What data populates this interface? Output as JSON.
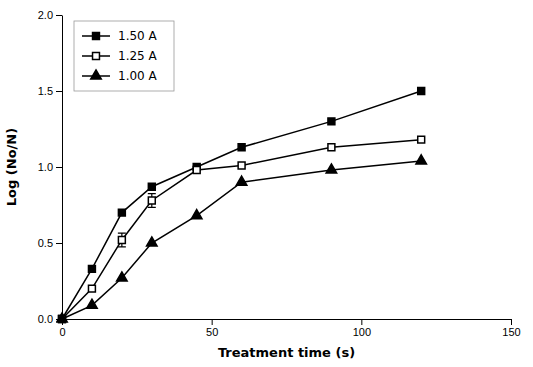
{
  "chart_data": {
    "type": "line",
    "x_label": "Treatment time (s)",
    "y_label": "Log (No/N)",
    "x": [
      0,
      10,
      20,
      30,
      45,
      60,
      90,
      120
    ],
    "series": [
      {
        "name": "1.50 A",
        "color": "#000000",
        "marker": "square",
        "values": [
          0.0,
          0.33,
          0.7,
          0.87,
          1.0,
          1.13,
          1.3,
          1.5
        ]
      },
      {
        "name": "1.25 A",
        "color": "#000000",
        "marker": "square-open",
        "values": [
          0.0,
          0.2,
          0.52,
          0.78,
          0.98,
          1.01,
          1.13,
          1.18
        ],
        "errors": [
          null,
          null,
          0.045,
          0.045,
          null,
          null,
          null,
          null
        ]
      },
      {
        "name": "1.00 A",
        "color": "#000000",
        "marker": "triangle",
        "values": [
          0.0,
          0.09,
          0.27,
          0.5,
          0.68,
          0.9,
          0.98,
          1.04
        ]
      }
    ],
    "xlim": [
      0,
      150
    ],
    "ylim": [
      0.0,
      2.0
    ],
    "xticks": [
      0,
      50,
      100,
      150
    ],
    "yticks": [
      {
        "value": 0.0,
        "label": "0.0"
      },
      0.5,
      {
        "value": 1.0,
        "label": "1.0"
      },
      1.5,
      {
        "value": 2.0,
        "label": "2.0"
      }
    ],
    "grid": false,
    "legend": "top-left"
  }
}
